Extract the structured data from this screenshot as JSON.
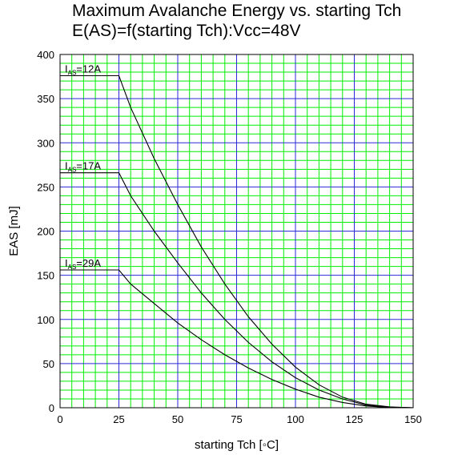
{
  "chart_data": {
    "type": "line",
    "title": "Maximum Avalanche Energy vs. starting Tch",
    "subtitle": "E(AS)=f(starting Tch):Vcc=48V",
    "xlabel": "starting Tch [◦C]",
    "ylabel": "EAS [mJ]",
    "xlim": [
      0,
      150
    ],
    "ylim": [
      0,
      400
    ],
    "x_ticks": [
      "0",
      "25",
      "50",
      "75",
      "100",
      "125",
      "150"
    ],
    "y_ticks": [
      "0",
      "50",
      "100",
      "150",
      "200",
      "250",
      "300",
      "350",
      "400"
    ],
    "grid": true,
    "colors": {
      "minor_grid": "#00ee00",
      "major_grid": "#2a2ad8",
      "line": "#000000",
      "frame": "#000000"
    },
    "series": [
      {
        "name": "IAS=12A",
        "label_main": "I",
        "label_sub": "AS",
        "label_value": "=12A",
        "x": [
          0,
          25,
          30,
          40,
          50,
          60,
          70,
          80,
          90,
          100,
          110,
          120,
          130,
          140,
          150
        ],
        "y": [
          376,
          376,
          340,
          282,
          230,
          182,
          140,
          103,
          72,
          46,
          26,
          12,
          4,
          1,
          0
        ]
      },
      {
        "name": "IAS=17A",
        "label_main": "I",
        "label_sub": "AS",
        "label_value": "=17A",
        "x": [
          0,
          25,
          30,
          40,
          50,
          60,
          70,
          80,
          90,
          100,
          110,
          120,
          130,
          140,
          150
        ],
        "y": [
          266,
          266,
          240,
          200,
          164,
          130,
          100,
          74,
          52,
          34,
          20,
          10,
          3,
          0.5,
          0
        ]
      },
      {
        "name": "IAS=29A",
        "label_main": "I",
        "label_sub": "AS",
        "label_value": "=29A",
        "x": [
          0,
          25,
          30,
          40,
          50,
          60,
          70,
          80,
          90,
          100,
          110,
          120,
          130,
          140,
          150
        ],
        "y": [
          156,
          156,
          140,
          118,
          96,
          77,
          60,
          45,
          32,
          21,
          12,
          6,
          2,
          0.3,
          0
        ]
      }
    ]
  }
}
